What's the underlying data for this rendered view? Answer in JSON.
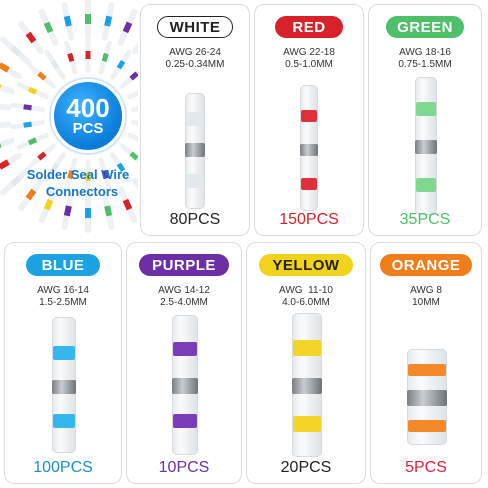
{
  "hero": {
    "total_number": "400",
    "total_unit": "PCS",
    "caption_line1": "Solder Seal Wire",
    "caption_line2": "Connectors"
  },
  "cards": [
    {
      "id": "white",
      "label": "WHITE",
      "awg": "AWG 26-24",
      "mm": "0.25-0.34MM",
      "count": "80PCS",
      "color": "#ffffff",
      "text_color": "#222222",
      "count_color": "#222222",
      "band": "#e6ebef"
    },
    {
      "id": "red",
      "label": "RED",
      "awg": "AWG 22-18",
      "mm": "0.5-1.0MM",
      "count": "150PCS",
      "color": "#d7222a",
      "text_color": "#ffffff",
      "count_color": "#d7222a",
      "band": "#e0313a"
    },
    {
      "id": "green",
      "label": "GREEN",
      "awg": "AWG 18-16",
      "mm": "0.75-1.5MM",
      "count": "35PCS",
      "color": "#4fbf6a",
      "text_color": "#ffffff",
      "count_color": "#4fbf6a",
      "band": "#7fd88f"
    },
    {
      "id": "blue",
      "label": "BLUE",
      "awg": "AWG 16-14",
      "mm": "1.5-2.5MM",
      "count": "100PCS",
      "color": "#1aa3e0",
      "text_color": "#ffffff",
      "count_color": "#1a8fd0",
      "band": "#35b7ee"
    },
    {
      "id": "purple",
      "label": "PURPLE",
      "awg": "AWG 14-12",
      "mm": "2.5-4.0MM",
      "count": "10PCS",
      "color": "#6d2fa6",
      "text_color": "#ffffff",
      "count_color": "#6d2fa6",
      "band": "#7b3cb8"
    },
    {
      "id": "yellow",
      "label": "YELLOW",
      "awg": "AWG  11-10",
      "mm": "4.0-6.0MM",
      "count": "20PCS",
      "color": "#f2d21b",
      "text_color": "#222222",
      "count_color": "#222222",
      "band": "#f5d428"
    },
    {
      "id": "orange",
      "label": "ORANGE",
      "awg": "AWG 8",
      "mm": "10MM",
      "count": "5PCS",
      "color": "#f07d1a",
      "text_color": "#ffffff",
      "count_color": "#e0223a",
      "band": "#f38a2a"
    }
  ]
}
